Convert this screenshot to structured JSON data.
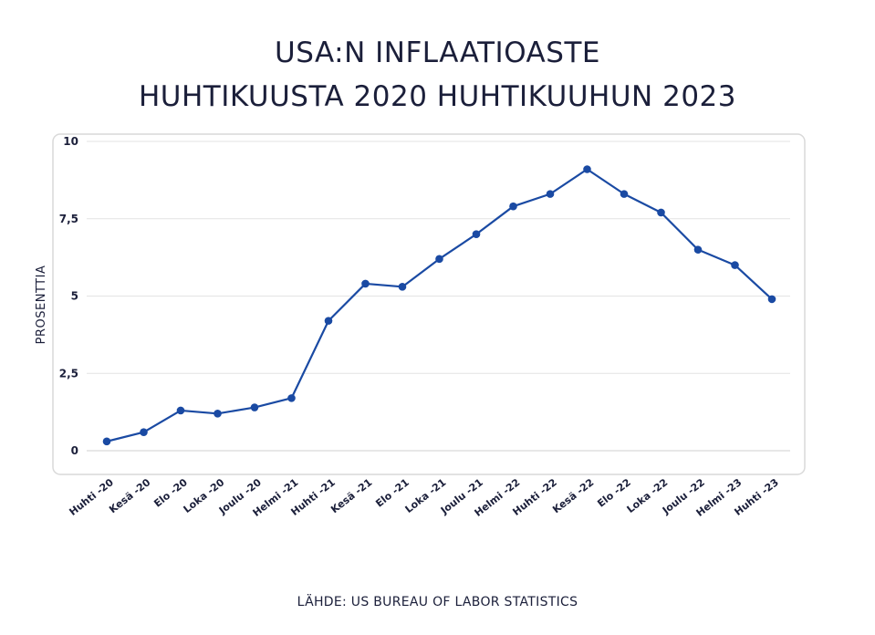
{
  "chart_data": {
    "type": "line",
    "title": "USA:N INFLAATIOASTE",
    "subtitle": "HUHTIKUUSTA 2020 HUHTIKUUHUN 2023",
    "xlabel": "",
    "ylabel": "PROSENTTIA",
    "ylim": [
      0,
      10
    ],
    "yticks": [
      {
        "value": 0,
        "label": "0"
      },
      {
        "value": 2.5,
        "label": "2,5"
      },
      {
        "value": 5,
        "label": "5"
      },
      {
        "value": 7.5,
        "label": "7,5"
      },
      {
        "value": 10,
        "label": "10"
      }
    ],
    "grid": true,
    "categories": [
      "Huhti -20",
      "Kesä -20",
      "Elo -20",
      "Loka -20",
      "Joulu -20",
      "Helmi -21",
      "Huhti -21",
      "Kesä -21",
      "Elo -21",
      "Loka -21",
      "Joulu -21",
      "Helmi -22",
      "Huhti -22",
      "Kesä -22",
      "Elo -22",
      "Loka -22",
      "Joulu -22",
      "Helmi -23",
      "Huhti -23"
    ],
    "values": [
      0.3,
      0.6,
      1.3,
      1.2,
      1.4,
      1.7,
      4.2,
      5.4,
      5.3,
      6.2,
      7.0,
      7.9,
      8.3,
      9.1,
      8.3,
      7.7,
      6.5,
      6.0,
      4.9
    ],
    "line_color": "#1a4aa3",
    "source": "LÄHDE: US BUREAU OF LABOR STATISTICS"
  }
}
